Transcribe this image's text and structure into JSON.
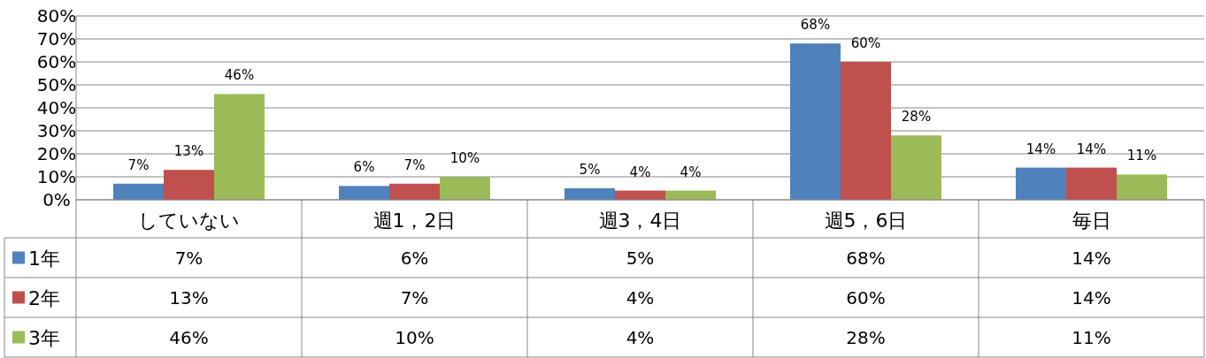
{
  "chart_data": {
    "type": "bar",
    "categories": [
      "していない",
      "週1，2日",
      "週3，4日",
      "週5，6日",
      "毎日"
    ],
    "series": [
      {
        "name": "1年",
        "color": "#4f81bd",
        "values": [
          7,
          6,
          5,
          68,
          14
        ],
        "value_labels": [
          "7%",
          "6%",
          "5%",
          "68%",
          "14%"
        ]
      },
      {
        "name": "2年",
        "color": "#c0504d",
        "values": [
          13,
          7,
          4,
          60,
          14
        ],
        "value_labels": [
          "13%",
          "7%",
          "4%",
          "60%",
          "14%"
        ]
      },
      {
        "name": "3年",
        "color": "#9bbb59",
        "values": [
          46,
          10,
          4,
          28,
          11
        ],
        "value_labels": [
          "46%",
          "10%",
          "4%",
          "28%",
          "11%"
        ]
      }
    ],
    "ylim": [
      0,
      80
    ],
    "yticks": [
      {
        "value": 0,
        "label": "0%"
      },
      {
        "value": 10,
        "label": "10%"
      },
      {
        "value": 20,
        "label": "20%"
      },
      {
        "value": 30,
        "label": "30%"
      },
      {
        "value": 40,
        "label": "40%"
      },
      {
        "value": 50,
        "label": "50%"
      },
      {
        "value": 60,
        "label": "60%"
      },
      {
        "value": 70,
        "label": "70%"
      },
      {
        "value": 80,
        "label": "80%"
      }
    ],
    "grid": "y",
    "legend": "bottom"
  }
}
